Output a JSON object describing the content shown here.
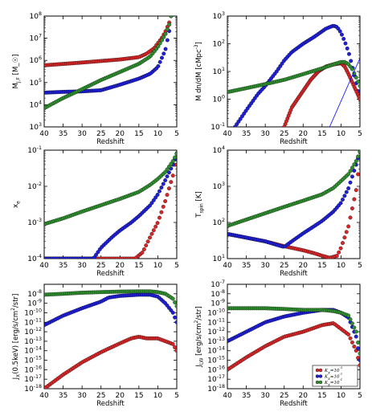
{
  "figure": {
    "colors": {
      "red": "#d62728",
      "blue": "#1f1fd6",
      "green": "#2f8f2f",
      "line": "#0000ff"
    },
    "legend_entries": [
      "K_X=10^-3",
      "K_X=10^-2",
      "K_X=10^-1"
    ]
  },
  "chart_data": [
    {
      "type": "scatter",
      "ylabel": "M_{J,F} [M_☉]",
      "xlabel": "Redshift",
      "xlim": [
        40,
        5
      ],
      "ylim": [
        1000,
        100000000
      ],
      "yscale": "log",
      "x_ticks": [
        "40",
        "35",
        "30",
        "25",
        "20",
        "15",
        "10",
        "5"
      ],
      "y_ticks": [
        "10^3",
        "10^4",
        "10^5",
        "10^6",
        "10^7",
        "10^8"
      ],
      "series": [
        {
          "color": "red",
          "x": [
            40,
            30,
            20,
            15,
            13,
            11,
            9,
            8,
            7,
            6.5
          ],
          "y": [
            600000,
            800000,
            1100000,
            1400000,
            2000000,
            3500000,
            10000000,
            20000000,
            50000000,
            100000000
          ]
        },
        {
          "color": "blue",
          "x": [
            40,
            35,
            30,
            25,
            20,
            15,
            12,
            10,
            8,
            7,
            6.5
          ],
          "y": [
            35000,
            38000,
            40000,
            45000,
            80000,
            150000,
            250000,
            500000,
            3000000,
            20000000,
            100000000
          ]
        },
        {
          "color": "green",
          "x": [
            40,
            35,
            30,
            25,
            20,
            15,
            12,
            10,
            8,
            7,
            6.5
          ],
          "y": [
            7000,
            20000,
            50000,
            130000,
            300000,
            700000,
            1500000,
            4000000,
            15000000,
            40000000,
            100000000
          ]
        }
      ]
    },
    {
      "type": "scatter",
      "ylabel": "M dn/dM [cMpc^-3]",
      "xlabel": "Redshift",
      "xlim": [
        40,
        5
      ],
      "ylim": [
        0.1,
        1000
      ],
      "yscale": "log",
      "x_ticks": [
        "40",
        "35",
        "30",
        "25",
        "20",
        "15",
        "10",
        "5"
      ],
      "y_ticks": [
        "10^-1",
        "10^0",
        "10^1",
        "10^2",
        "10^3"
      ],
      "series": [
        {
          "color": "blue",
          "x": [
            38,
            35,
            32,
            30,
            27,
            25,
            23,
            20,
            17,
            14,
            12,
            11,
            10,
            9,
            8,
            7,
            6,
            5
          ],
          "y": [
            0.1,
            0.4,
            1.5,
            3,
            10,
            25,
            50,
            100,
            180,
            350,
            450,
            400,
            250,
            120,
            50,
            15,
            4,
            1
          ]
        },
        {
          "color": "red",
          "x": [
            25,
            23,
            20,
            18,
            16,
            14,
            12,
            10,
            9,
            8,
            7,
            6,
            5
          ],
          "y": [
            0.1,
            0.5,
            2,
            5,
            10,
            15,
            18,
            20,
            15,
            8,
            4,
            2,
            1
          ]
        },
        {
          "color": "green",
          "x": [
            40,
            35,
            30,
            25,
            20,
            15,
            12,
            10,
            9,
            8,
            7,
            6,
            5
          ],
          "y": [
            1.8,
            2.5,
            3.5,
            5,
            8,
            13,
            18,
            22,
            22,
            18,
            12,
            6,
            3
          ]
        },
        {
          "color": "line",
          "x": [
            13,
            5
          ],
          "y": [
            0.1,
            30
          ]
        }
      ]
    },
    {
      "type": "scatter",
      "ylabel": "x_e",
      "xlabel": "Redshift",
      "xlim": [
        40,
        5
      ],
      "ylim": [
        0.0001,
        0.1
      ],
      "yscale": "log",
      "x_ticks": [
        "40",
        "35",
        "30",
        "25",
        "20",
        "15",
        "10",
        "5"
      ],
      "y_ticks": [
        "10^-4",
        "10^-3",
        "10^-2",
        "10^-1"
      ],
      "series": [
        {
          "color": "red",
          "x": [
            40,
            30,
            20,
            16,
            14,
            12,
            10,
            8,
            6,
            5
          ],
          "y": [
            0.0001,
            0.0001,
            0.0001,
            0.0001,
            0.00015,
            0.0004,
            0.001,
            0.004,
            0.02,
            0.08
          ]
        },
        {
          "color": "blue",
          "x": [
            40,
            30,
            27,
            25,
            22,
            20,
            17,
            15,
            12,
            10,
            8,
            6,
            5
          ],
          "y": [
            0.0001,
            0.0001,
            0.0001,
            0.0002,
            0.0004,
            0.0006,
            0.001,
            0.0015,
            0.003,
            0.006,
            0.015,
            0.04,
            0.08
          ]
        },
        {
          "color": "green",
          "x": [
            40,
            35,
            30,
            25,
            20,
            15,
            12,
            10,
            8,
            6,
            5
          ],
          "y": [
            0.0009,
            0.0013,
            0.002,
            0.003,
            0.0045,
            0.007,
            0.011,
            0.016,
            0.025,
            0.05,
            0.08
          ]
        }
      ]
    },
    {
      "type": "scatter",
      "ylabel": "T_spin [K]",
      "xlabel": "Redshift",
      "xlim": [
        40,
        5
      ],
      "ylim": [
        10,
        10000
      ],
      "yscale": "log",
      "x_ticks": [
        "40",
        "35",
        "30",
        "25",
        "20",
        "15",
        "10",
        "5"
      ],
      "y_ticks": [
        "10^1",
        "10^2",
        "10^3",
        "10^4"
      ],
      "series": [
        {
          "color": "red",
          "x": [
            40,
            30,
            25,
            20,
            17,
            15,
            13,
            11,
            10,
            8,
            6,
            5
          ],
          "y": [
            48,
            30,
            22,
            17,
            14,
            12,
            10.5,
            12,
            20,
            80,
            800,
            6000
          ]
        },
        {
          "color": "blue",
          "x": [
            40,
            35,
            30,
            27,
            25,
            23,
            20,
            17,
            15,
            12,
            10,
            8,
            6,
            5
          ],
          "y": [
            48,
            38,
            30,
            24,
            21,
            30,
            50,
            80,
            110,
            200,
            350,
            900,
            4000,
            9000
          ]
        },
        {
          "color": "green",
          "x": [
            40,
            35,
            30,
            25,
            20,
            15,
            12,
            10,
            8,
            6,
            5
          ],
          "y": [
            80,
            120,
            180,
            270,
            400,
            600,
            900,
            1400,
            2200,
            5000,
            9000
          ]
        }
      ]
    },
    {
      "type": "scatter",
      "ylabel": "J_X(0.5keV) [erg/s/cm^2/str]",
      "xlabel": "Redshift",
      "xlim": [
        40,
        5
      ],
      "ylim": [
        1e-18,
        1e-07
      ],
      "yscale": "log",
      "x_ticks": [
        "40",
        "35",
        "30",
        "25",
        "20",
        "15",
        "10",
        "5"
      ],
      "y_ticks": [
        "10^-18",
        "10^-17",
        "10^-16",
        "10^-15",
        "10^-14",
        "10^-13",
        "10^-12",
        "10^-11",
        "10^-10",
        "10^-9",
        "10^-8"
      ],
      "series": [
        {
          "color": "red",
          "x": [
            40,
            35,
            30,
            25,
            20,
            17,
            15,
            13,
            10,
            8,
            6,
            5
          ],
          "y": [
            1e-18,
            3e-17,
            6e-16,
            7e-15,
            6e-14,
            2e-13,
            3e-13,
            2e-13,
            2e-13,
            1e-13,
            5e-14,
            1e-14
          ]
        },
        {
          "color": "blue",
          "x": [
            40,
            35,
            30,
            25,
            23,
            20,
            15,
            12,
            10,
            8,
            6,
            5
          ],
          "y": [
            5e-12,
            5e-11,
            3e-10,
            1.5e-09,
            4e-09,
            6e-09,
            8e-09,
            8e-09,
            5e-09,
            1e-09,
            1e-10,
            1e-11
          ]
        },
        {
          "color": "green",
          "x": [
            40,
            35,
            30,
            25,
            20,
            15,
            12,
            10,
            8,
            6,
            5
          ],
          "y": [
            8e-09,
            1e-08,
            1.3e-08,
            1.5e-08,
            1.7e-08,
            1.8e-08,
            1.8e-08,
            1.5e-08,
            1e-08,
            3e-09,
            5e-10
          ]
        }
      ]
    },
    {
      "type": "scatter",
      "ylabel": "J_LW [erg/s/cm^2/str]",
      "xlabel": "Redshift",
      "xlim": [
        40,
        5
      ],
      "ylim": [
        1e-18,
        1e-07
      ],
      "yscale": "log",
      "x_ticks": [
        "40",
        "35",
        "30",
        "25",
        "20",
        "15",
        "10",
        "5"
      ],
      "y_ticks": [
        "10^-18",
        "10^-17",
        "10^-16",
        "10^-15",
        "10^-14",
        "10^-13",
        "10^-12",
        "10^-11",
        "10^-10",
        "10^-9",
        "10^-8",
        "10^-7"
      ],
      "legend_location": "lower right",
      "series": [
        {
          "color": "red",
          "name": "K_X=10^-3",
          "x": [
            40,
            35,
            30,
            25,
            20,
            15,
            12,
            10,
            8,
            6,
            5
          ],
          "y": [
            1e-16,
            2e-15,
            3e-14,
            3e-13,
            1e-12,
            5e-12,
            8e-12,
            2e-12,
            5e-13,
            1e-14,
            3e-16
          ]
        },
        {
          "color": "blue",
          "name": "K_X=10^-2",
          "x": [
            40,
            35,
            30,
            25,
            20,
            15,
            12,
            10,
            8,
            6,
            5
          ],
          "y": [
            1e-13,
            1e-12,
            1e-11,
            4e-11,
            1e-10,
            2e-10,
            2e-10,
            1e-10,
            3e-11,
            3e-13,
            1e-15
          ]
        },
        {
          "color": "green",
          "name": "K_X=10^-1",
          "x": [
            40,
            35,
            30,
            25,
            20,
            15,
            12,
            10,
            8,
            6,
            5
          ],
          "y": [
            3e-10,
            3e-10,
            3e-10,
            2.5e-10,
            2e-10,
            2e-10,
            1.5e-10,
            1e-10,
            5e-11,
            1e-12,
            5e-15
          ]
        }
      ]
    }
  ]
}
